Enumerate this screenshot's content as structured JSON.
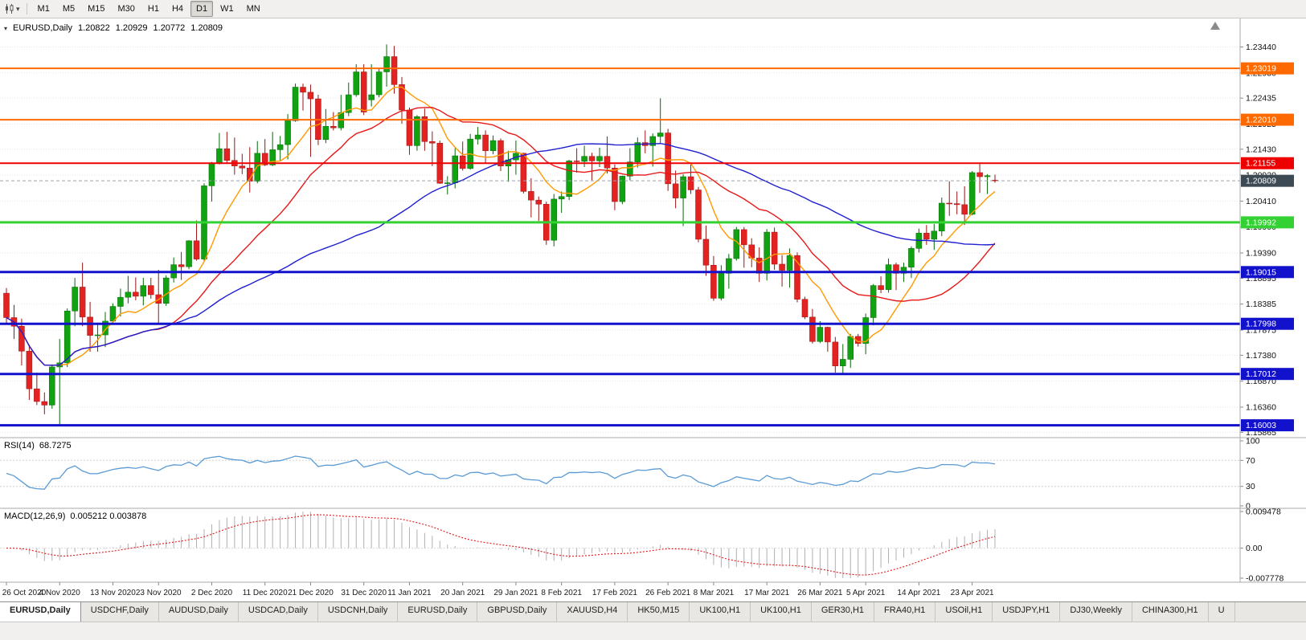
{
  "icons": {
    "caret_down": "▾"
  },
  "toolbar": {
    "timeframes": [
      "M1",
      "M5",
      "M15",
      "M30",
      "H1",
      "H4",
      "D1",
      "W1",
      "MN"
    ],
    "active_timeframe": "D1"
  },
  "chart_header": {
    "symbol": "EURUSD,Daily",
    "open": "1.20822",
    "high": "1.20929",
    "low": "1.20772",
    "close": "1.20809"
  },
  "price_axis": {
    "labels": [
      "1.23440",
      "1.22930",
      "1.22435",
      "1.21925",
      "1.21430",
      "1.20920",
      "1.20410",
      "1.19900",
      "1.19390",
      "1.18895",
      "1.18385",
      "1.17875",
      "1.17380",
      "1.16870",
      "1.16360",
      "1.15865"
    ]
  },
  "rsi_panel": {
    "label": "RSI(14)",
    "value": "68.7275",
    "axis_labels": [
      "100",
      "70",
      "30",
      "0"
    ]
  },
  "macd_panel": {
    "label": "MACD(12,26,9)",
    "value": "0.005212 0.003878",
    "axis_labels": [
      "0.009478",
      "0.00",
      "-0.007778"
    ]
  },
  "tabs": {
    "active_index": 0,
    "labels": [
      "EURUSD,Daily",
      "USDCHF,Daily",
      "AUDUSD,Daily",
      "USDCAD,Daily",
      "USDCNH,Daily",
      "EURUSD,Daily",
      "GBPUSD,Daily",
      "XAUUSD,H4",
      "HK50,M15",
      "UK100,H1",
      "UK100,H1",
      "GER30,H1",
      "FRA40,H1",
      "USOil,H1",
      "USDJPY,H1",
      "DJ30,Weekly",
      "CHINA300,H1",
      "U"
    ]
  },
  "chart_data": {
    "type": "candlestick",
    "title": "EURUSD,Daily",
    "symbol": "EURUSD",
    "timeframe": "Daily",
    "y_range": [
      1.1576,
      1.24
    ],
    "up_color": "#11a211",
    "down_color": "#e32222",
    "up_stroke": "#066906",
    "down_stroke": "#9b1414",
    "current_price": {
      "value": 1.20809,
      "label": "1.20809",
      "badge_color": "#3d4a54"
    },
    "levels": [
      {
        "price": 1.23019,
        "label": "1.23019",
        "color": "#ff6a00",
        "width": 2
      },
      {
        "price": 1.2201,
        "label": "1.22010",
        "color": "#ff6a00",
        "width": 2
      },
      {
        "price": 1.21155,
        "label": "1.21155",
        "color": "#ef0000",
        "width": 2
      },
      {
        "price": 1.19992,
        "label": "1.19992",
        "color": "#33d133",
        "width": 3
      },
      {
        "price": 1.19015,
        "label": "1.19015",
        "color": "#1212cc",
        "width": 3
      },
      {
        "price": 1.17998,
        "label": "1.17998",
        "color": "#1212cc",
        "width": 3
      },
      {
        "price": 1.17012,
        "label": "1.17012",
        "color": "#1212cc",
        "width": 3
      },
      {
        "price": 1.16003,
        "label": "1.16003",
        "color": "#1212cc",
        "width": 3
      }
    ],
    "moving_averages": [
      {
        "period": 8,
        "color": "#ff9a00"
      },
      {
        "period": 20,
        "color": "#e81717"
      },
      {
        "period": 50,
        "color": "#1f1fd0"
      }
    ],
    "indicators": {
      "rsi": {
        "period": 14,
        "current": 68.7275,
        "levels": [
          70,
          30
        ],
        "color": "#5b9bd5"
      },
      "macd": {
        "fast": 12,
        "slow": 26,
        "signal": 9,
        "current_macd": 0.005212,
        "current_signal": 0.003878,
        "range": [
          -0.007778,
          0.009478
        ],
        "histogram_color": "#b0b0b0",
        "signal_color": "#e01717"
      }
    },
    "x_labels": [
      {
        "text": "26 Oct 2020",
        "index": 0
      },
      {
        "text": "4 Nov 2020",
        "index": 7
      },
      {
        "text": "13 Nov 2020",
        "index": 14
      },
      {
        "text": "23 Nov 2020",
        "index": 20
      },
      {
        "text": "2 Dec 2020",
        "index": 27
      },
      {
        "text": "11 Dec 2020",
        "index": 34
      },
      {
        "text": "21 Dec 2020",
        "index": 40
      },
      {
        "text": "31 Dec 2020",
        "index": 47
      },
      {
        "text": "11 Jan 2021",
        "index": 53
      },
      {
        "text": "20 Jan 2021",
        "index": 60
      },
      {
        "text": "29 Jan 2021",
        "index": 67
      },
      {
        "text": "8 Feb 2021",
        "index": 73
      },
      {
        "text": "17 Feb 2021",
        "index": 80
      },
      {
        "text": "26 Feb 2021",
        "index": 87
      },
      {
        "text": "8 Mar 2021",
        "index": 93
      },
      {
        "text": "17 Mar 2021",
        "index": 100
      },
      {
        "text": "26 Mar 2021",
        "index": 107
      },
      {
        "text": "5 Apr 2021",
        "index": 113
      },
      {
        "text": "14 Apr 2021",
        "index": 120
      },
      {
        "text": "23 Apr 2021",
        "index": 127
      }
    ],
    "ohlc": [
      [
        1.186,
        1.187,
        1.18,
        1.1812
      ],
      [
        1.1812,
        1.1837,
        1.177,
        1.1795
      ],
      [
        1.1795,
        1.181,
        1.1718,
        1.1746
      ],
      [
        1.1746,
        1.1759,
        1.165,
        1.1672
      ],
      [
        1.1672,
        1.1704,
        1.164,
        1.1647
      ],
      [
        1.1647,
        1.1665,
        1.1622,
        1.164
      ],
      [
        1.164,
        1.172,
        1.1633,
        1.1715
      ],
      [
        1.1715,
        1.177,
        1.1602,
        1.1723
      ],
      [
        1.1723,
        1.183,
        1.1715,
        1.1825
      ],
      [
        1.1825,
        1.189,
        1.1795,
        1.1872
      ],
      [
        1.1872,
        1.192,
        1.1795,
        1.1813
      ],
      [
        1.1813,
        1.1843,
        1.1745,
        1.1777
      ],
      [
        1.1777,
        1.18,
        1.1745,
        1.1778
      ],
      [
        1.1778,
        1.1823,
        1.1754,
        1.1805
      ],
      [
        1.1805,
        1.184,
        1.1799,
        1.1834
      ],
      [
        1.1834,
        1.1869,
        1.1814,
        1.1852
      ],
      [
        1.1852,
        1.1894,
        1.184,
        1.1862
      ],
      [
        1.1862,
        1.1891,
        1.1846,
        1.1854
      ],
      [
        1.1854,
        1.189,
        1.1836,
        1.1875
      ],
      [
        1.1875,
        1.189,
        1.1849,
        1.1857
      ],
      [
        1.1857,
        1.1906,
        1.18,
        1.184
      ],
      [
        1.184,
        1.1895,
        1.1835,
        1.189
      ],
      [
        1.189,
        1.193,
        1.1881,
        1.1916
      ],
      [
        1.1916,
        1.1941,
        1.1886,
        1.1912
      ],
      [
        1.1912,
        1.1964,
        1.1907,
        1.1963
      ],
      [
        1.1963,
        1.2003,
        1.1924,
        1.1927
      ],
      [
        1.1927,
        1.2076,
        1.1923,
        1.2071
      ],
      [
        1.2071,
        1.2118,
        1.204,
        1.2115
      ],
      [
        1.2115,
        1.2175,
        1.2113,
        1.2144
      ],
      [
        1.2144,
        1.2177,
        1.2115,
        1.2121
      ],
      [
        1.2121,
        1.2166,
        1.2093,
        1.211
      ],
      [
        1.211,
        1.2134,
        1.2094,
        1.2106
      ],
      [
        1.2106,
        1.2147,
        1.2058,
        1.208
      ],
      [
        1.208,
        1.2159,
        1.2076,
        1.2135
      ],
      [
        1.2135,
        1.2163,
        1.211,
        1.2112
      ],
      [
        1.2112,
        1.2177,
        1.211,
        1.2142
      ],
      [
        1.2142,
        1.2169,
        1.2121,
        1.2152
      ],
      [
        1.2152,
        1.2212,
        1.2123,
        1.2199
      ],
      [
        1.2199,
        1.2272,
        1.2197,
        1.2265
      ],
      [
        1.2265,
        1.2272,
        1.2219,
        1.2255
      ],
      [
        1.2255,
        1.227,
        1.2128,
        1.2242
      ],
      [
        1.2242,
        1.225,
        1.2151,
        1.2162
      ],
      [
        1.2162,
        1.2222,
        1.2155,
        1.2188
      ],
      [
        1.2188,
        1.2216,
        1.218,
        1.2185
      ],
      [
        1.2185,
        1.225,
        1.218,
        1.2215
      ],
      [
        1.2215,
        1.2274,
        1.2208,
        1.225
      ],
      [
        1.225,
        1.231,
        1.2246,
        1.2295
      ],
      [
        1.2295,
        1.231,
        1.221,
        1.2216
      ],
      [
        1.224,
        1.231,
        1.2227,
        1.225
      ],
      [
        1.225,
        1.2303,
        1.2245,
        1.2295
      ],
      [
        1.2295,
        1.2349,
        1.2266,
        1.2325
      ],
      [
        1.2325,
        1.2346,
        1.2252,
        1.227
      ],
      [
        1.227,
        1.2285,
        1.2193,
        1.222
      ],
      [
        1.222,
        1.2225,
        1.2132,
        1.215
      ],
      [
        1.215,
        1.221,
        1.214,
        1.2207
      ],
      [
        1.2207,
        1.2223,
        1.214,
        1.2158
      ],
      [
        1.2158,
        1.2178,
        1.211,
        1.2155
      ],
      [
        1.2155,
        1.216,
        1.2075,
        1.2076
      ],
      [
        1.2076,
        1.209,
        1.2054,
        1.2077
      ],
      [
        1.2077,
        1.2145,
        1.2066,
        1.213
      ],
      [
        1.213,
        1.2158,
        1.2101,
        1.2105
      ],
      [
        1.2105,
        1.2173,
        1.2103,
        1.2163
      ],
      [
        1.2163,
        1.2187,
        1.2152,
        1.2171
      ],
      [
        1.2171,
        1.218,
        1.2116,
        1.214
      ],
      [
        1.214,
        1.217,
        1.2133,
        1.216
      ],
      [
        1.216,
        1.2164,
        1.21,
        1.211
      ],
      [
        1.211,
        1.214,
        1.2079,
        1.2122
      ],
      [
        1.2122,
        1.216,
        1.2093,
        1.2135
      ],
      [
        1.2135,
        1.2136,
        1.2056,
        1.206
      ],
      [
        1.206,
        1.2086,
        1.2009,
        1.2043
      ],
      [
        1.2043,
        1.205,
        1.2002,
        1.2035
      ],
      [
        1.2035,
        1.204,
        1.1955,
        1.1964
      ],
      [
        1.1964,
        1.2055,
        1.1952,
        1.2045
      ],
      [
        1.2045,
        1.206,
        1.2018,
        1.205
      ],
      [
        1.205,
        1.2122,
        1.2043,
        1.212
      ],
      [
        1.212,
        1.2145,
        1.2097,
        1.2119
      ],
      [
        1.2119,
        1.215,
        1.2108,
        1.2129
      ],
      [
        1.2129,
        1.2136,
        1.2082,
        1.212
      ],
      [
        1.212,
        1.2146,
        1.2108,
        1.2129
      ],
      [
        1.2129,
        1.2168,
        1.2095,
        1.2106
      ],
      [
        1.2106,
        1.2113,
        1.2023,
        1.204
      ],
      [
        1.204,
        1.2091,
        1.2035,
        1.209
      ],
      [
        1.209,
        1.2145,
        1.2082,
        1.2118
      ],
      [
        1.2118,
        1.2166,
        1.2107,
        1.2156
      ],
      [
        1.2156,
        1.218,
        1.2135,
        1.215
      ],
      [
        1.215,
        1.2174,
        1.2109,
        1.2168
      ],
      [
        1.2168,
        1.2243,
        1.2155,
        1.2175
      ],
      [
        1.2175,
        1.2183,
        1.2061,
        1.2075
      ],
      [
        1.2075,
        1.2101,
        1.2027,
        1.2047
      ],
      [
        1.2047,
        1.2094,
        1.1992,
        1.2089
      ],
      [
        1.2089,
        1.2113,
        1.2055,
        1.2063
      ],
      [
        1.2063,
        1.2069,
        1.196,
        1.1966
      ],
      [
        1.1966,
        1.1993,
        1.1894,
        1.1915
      ],
      [
        1.1915,
        1.1933,
        1.1845,
        1.185
      ],
      [
        1.185,
        1.1915,
        1.1846,
        1.1899
      ],
      [
        1.1899,
        1.1937,
        1.1869,
        1.1928
      ],
      [
        1.1928,
        1.199,
        1.1924,
        1.1985
      ],
      [
        1.1985,
        1.199,
        1.191,
        1.1955
      ],
      [
        1.1955,
        1.1968,
        1.1911,
        1.1929
      ],
      [
        1.1929,
        1.195,
        1.1882,
        1.1899
      ],
      [
        1.1899,
        1.1986,
        1.1885,
        1.198
      ],
      [
        1.198,
        1.1989,
        1.1906,
        1.1917
      ],
      [
        1.1917,
        1.1935,
        1.1873,
        1.1905
      ],
      [
        1.1905,
        1.1948,
        1.1871,
        1.1934
      ],
      [
        1.1934,
        1.194,
        1.1842,
        1.1848
      ],
      [
        1.1848,
        1.1853,
        1.1809,
        1.1813
      ],
      [
        1.1813,
        1.1829,
        1.1761,
        1.1765
      ],
      [
        1.1765,
        1.1805,
        1.1762,
        1.1793
      ],
      [
        1.1793,
        1.1794,
        1.1745,
        1.1764
      ],
      [
        1.1764,
        1.1774,
        1.1704,
        1.1717
      ],
      [
        1.1717,
        1.176,
        1.17,
        1.173
      ],
      [
        1.173,
        1.178,
        1.1713,
        1.1775
      ],
      [
        1.1775,
        1.178,
        1.1755,
        1.1761
      ],
      [
        1.1761,
        1.182,
        1.174,
        1.1812
      ],
      [
        1.1812,
        1.1878,
        1.1797,
        1.1875
      ],
      [
        1.1875,
        1.1893,
        1.186,
        1.1867
      ],
      [
        1.1867,
        1.1928,
        1.1861,
        1.1916
      ],
      [
        1.1916,
        1.192,
        1.1866,
        1.1899
      ],
      [
        1.1899,
        1.192,
        1.1882,
        1.1911
      ],
      [
        1.1911,
        1.1952,
        1.189,
        1.1948
      ],
      [
        1.1948,
        1.1987,
        1.194,
        1.1978
      ],
      [
        1.1978,
        1.1994,
        1.1955,
        1.1966
      ],
      [
        1.1966,
        1.1996,
        1.1945,
        1.1982
      ],
      [
        1.1982,
        1.2048,
        1.1972,
        1.2037
      ],
      [
        1.2037,
        1.208,
        1.2012,
        1.2036
      ],
      [
        1.2036,
        1.206,
        1.2015,
        1.2034
      ],
      [
        1.2034,
        1.207,
        1.1994,
        1.2015
      ],
      [
        1.2015,
        1.21,
        1.2013,
        1.2097
      ],
      [
        1.2097,
        1.2117,
        1.2057,
        1.2089
      ],
      [
        1.2089,
        1.2094,
        1.2055,
        1.2091
      ],
      [
        1.20822,
        1.20929,
        1.20772,
        1.20809
      ]
    ]
  }
}
